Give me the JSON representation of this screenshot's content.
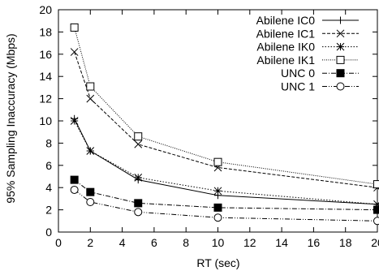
{
  "chart_data": {
    "type": "line",
    "xlabel": "RT (sec)",
    "ylabel": "95% Sampling Inaccuracy (Mbps)",
    "xlim": [
      0,
      20
    ],
    "ylim": [
      0,
      20
    ],
    "xticks": [
      0,
      2,
      4,
      6,
      8,
      10,
      12,
      14,
      16,
      18,
      20
    ],
    "yticks": [
      0,
      2,
      4,
      6,
      8,
      10,
      12,
      14,
      16,
      18,
      20
    ],
    "grid": false,
    "legend_position": "top-right",
    "x": [
      1,
      2,
      5,
      10,
      20
    ],
    "series": [
      {
        "name": "Abilene IC0",
        "marker": "plus",
        "dash": "",
        "values": [
          10.2,
          7.3,
          4.7,
          3.3,
          2.5
        ]
      },
      {
        "name": "Abilene IC1",
        "marker": "x",
        "dash": "4,2",
        "values": [
          16.2,
          12.0,
          7.9,
          5.8,
          4.0
        ]
      },
      {
        "name": "Abilene IK0",
        "marker": "star",
        "dash": "1.5,2",
        "values": [
          10.0,
          7.3,
          4.9,
          3.7,
          2.5
        ]
      },
      {
        "name": "Abilene IK1",
        "marker": "square-open",
        "dash": "1,1.5",
        "values": [
          18.4,
          13.1,
          8.6,
          6.3,
          4.3
        ]
      },
      {
        "name": "UNC 0",
        "marker": "square-filled",
        "dash": "6,2,1,2",
        "values": [
          4.7,
          3.6,
          2.6,
          2.2,
          2.0
        ]
      },
      {
        "name": "UNC 1",
        "marker": "circle-open",
        "dash": "6,2,1,2,1,2",
        "values": [
          3.8,
          2.7,
          1.8,
          1.3,
          1.0
        ]
      }
    ]
  }
}
